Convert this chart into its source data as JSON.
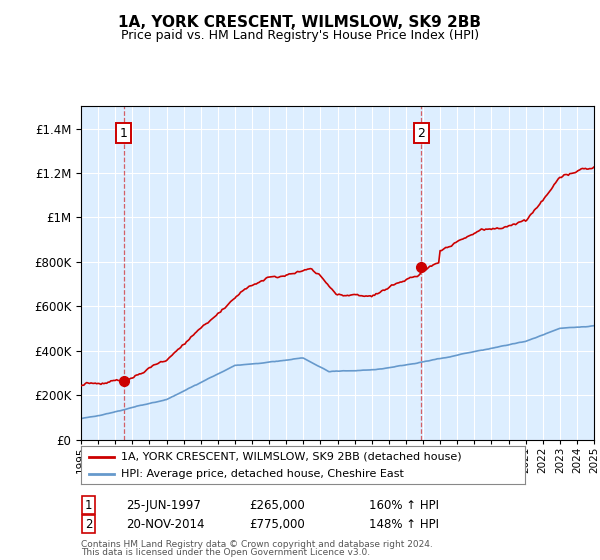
{
  "title": "1A, YORK CRESCENT, WILMSLOW, SK9 2BB",
  "subtitle": "Price paid vs. HM Land Registry's House Price Index (HPI)",
  "sale1_price": 265000,
  "sale1_label": "25-JUN-1997",
  "sale1_hpi": "160% ↑ HPI",
  "sale1_year": 1997.5,
  "sale2_price": 775000,
  "sale2_label": "20-NOV-2014",
  "sale2_hpi": "148% ↑ HPI",
  "sale2_year": 2014.9,
  "legend_line1": "1A, YORK CRESCENT, WILMSLOW, SK9 2BB (detached house)",
  "legend_line2": "HPI: Average price, detached house, Cheshire East",
  "footer1": "Contains HM Land Registry data © Crown copyright and database right 2024.",
  "footer2": "This data is licensed under the Open Government Licence v3.0.",
  "red_color": "#cc0000",
  "blue_color": "#6699cc",
  "bg_color": "#ddeeff",
  "ylim_max": 1500000,
  "ylim_min": 0,
  "xmin": 1995,
  "xmax": 2025
}
